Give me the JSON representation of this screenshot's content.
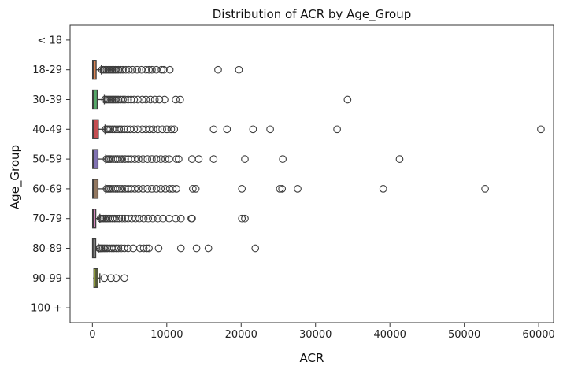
{
  "chart_data": {
    "type": "box",
    "orientation": "horizontal",
    "title": "Distribution of ACR by Age_Group",
    "xlabel": "ACR",
    "ylabel": "Age_Group",
    "xlim": [
      -3000,
      62000
    ],
    "x_ticks": [
      0,
      10000,
      20000,
      30000,
      40000,
      50000,
      60000
    ],
    "x_tick_labels": [
      "0",
      "10000",
      "20000",
      "30000",
      "40000",
      "50000",
      "60000"
    ],
    "categories": [
      "< 18",
      "18-29",
      "30-39",
      "40-49",
      "50-59",
      "60-69",
      "70-79",
      "80-89",
      "90-99",
      "100 +"
    ],
    "grid": false,
    "legend": "none",
    "series": [
      {
        "category": "< 18",
        "color": "#3a6fb0",
        "box": null,
        "outliers": []
      },
      {
        "category": "18-29",
        "color": "#dd8452",
        "box": {
          "q1": 30,
          "median": 100,
          "q3": 500,
          "whisker_low": 0,
          "whisker_high": 1200
        },
        "outliers": [
          1300,
          1500,
          1700,
          1900,
          2100,
          2300,
          2500,
          2700,
          2900,
          3100,
          3300,
          3500,
          3800,
          4100,
          4500,
          4900,
          5400,
          6000,
          6600,
          7200,
          7600,
          8000,
          8600,
          9300,
          9600,
          10400,
          16900,
          19700
        ]
      },
      {
        "category": "30-39",
        "color": "#55a868",
        "box": {
          "q1": 30,
          "median": 120,
          "q3": 650,
          "whisker_low": 0,
          "whisker_high": 1600
        },
        "outliers": [
          1700,
          1900,
          2100,
          2300,
          2500,
          2700,
          2900,
          3100,
          3300,
          3500,
          3800,
          4100,
          4400,
          4800,
          5200,
          5600,
          6100,
          6700,
          7200,
          7800,
          8400,
          9000,
          9700,
          11200,
          11800,
          34300
        ]
      },
      {
        "category": "40-49",
        "color": "#c44e52",
        "box": {
          "q1": 40,
          "median": 150,
          "q3": 800,
          "whisker_low": 0,
          "whisker_high": 1700
        },
        "outliers": [
          1800,
          2000,
          2200,
          2400,
          2700,
          3000,
          3300,
          3600,
          3900,
          4300,
          4700,
          5100,
          5600,
          6100,
          6700,
          7200,
          7700,
          8200,
          8800,
          9400,
          10000,
          10600,
          11000,
          16300,
          18100,
          21600,
          23900,
          32900,
          60300
        ]
      },
      {
        "category": "50-59",
        "color": "#8172b3",
        "box": {
          "q1": 40,
          "median": 150,
          "q3": 750,
          "whisker_low": 0,
          "whisker_high": 1800
        },
        "outliers": [
          1900,
          2100,
          2300,
          2500,
          2800,
          3100,
          3400,
          3700,
          4000,
          4400,
          4800,
          5200,
          5700,
          6200,
          6800,
          7400,
          8000,
          8600,
          9200,
          9800,
          10300,
          11300,
          11600,
          13400,
          14300,
          16300,
          20500,
          25600,
          41300
        ]
      },
      {
        "category": "60-69",
        "color": "#937860",
        "box": {
          "q1": 40,
          "median": 140,
          "q3": 750,
          "whisker_low": 0,
          "whisker_high": 1800
        },
        "outliers": [
          1900,
          2100,
          2300,
          2500,
          2800,
          3100,
          3400,
          3700,
          4000,
          4400,
          4800,
          5200,
          5700,
          6200,
          6800,
          7400,
          8000,
          8600,
          9200,
          9800,
          10400,
          10800,
          11300,
          13500,
          13900,
          20100,
          25200,
          25500,
          27600,
          39100,
          52800
        ]
      },
      {
        "category": "70-79",
        "color": "#da8bc3",
        "box": {
          "q1": 30,
          "median": 110,
          "q3": 450,
          "whisker_low": 0,
          "whisker_high": 1000
        },
        "outliers": [
          1100,
          1300,
          1500,
          1700,
          1900,
          2100,
          2400,
          2700,
          3000,
          3300,
          3600,
          4000,
          4400,
          4800,
          5300,
          5800,
          6300,
          6900,
          7500,
          8100,
          8800,
          9500,
          10300,
          11200,
          11900,
          13300,
          13400,
          20100,
          20500
        ]
      },
      {
        "category": "80-89",
        "color": "#8c8c8c",
        "box": {
          "q1": 20,
          "median": 80,
          "q3": 350,
          "whisker_low": 0,
          "whisker_high": 800
        },
        "outliers": [
          900,
          1000,
          1200,
          1400,
          1600,
          1800,
          2000,
          2300,
          2600,
          2900,
          3200,
          3500,
          3900,
          4300,
          4800,
          5500,
          6400,
          6900,
          7300,
          7600,
          8900,
          11900,
          14000,
          15600,
          21900
        ]
      },
      {
        "category": "90-99",
        "color": "#8c9a3a",
        "box": {
          "q1": 200,
          "median": 500,
          "q3": 700,
          "whisker_low": 100,
          "whisker_high": 1000
        },
        "outliers": [
          1600,
          2500,
          3200,
          4300
        ]
      },
      {
        "category": "100 +",
        "color": "#5bb5c8",
        "box": null,
        "outliers": []
      }
    ]
  }
}
